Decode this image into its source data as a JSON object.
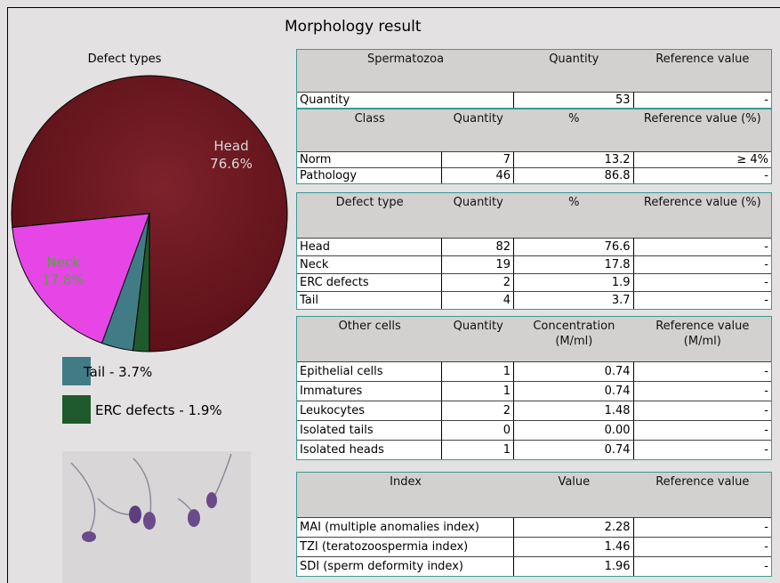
{
  "title": "Morphology result",
  "chart_data": {
    "type": "pie",
    "title": "Defect types",
    "categories": [
      "Head",
      "Neck",
      "Tail",
      "ERC defects"
    ],
    "values": [
      76.6,
      17.8,
      3.7,
      1.9
    ],
    "value_labels": [
      "76.6%",
      "17.8%",
      "3.7%",
      "1.9%"
    ],
    "colors": [
      "#6e1820",
      "#e646e6",
      "#417c86",
      "#1f5a2c"
    ],
    "legend": [
      {
        "series": 2,
        "label": "Tail - 3.7%"
      },
      {
        "series": 3,
        "label": "ERC defects - 1.9%"
      }
    ]
  },
  "tables": [
    {
      "span": true,
      "headers": [
        "Spermatozoa",
        "Quantity",
        "Reference value"
      ],
      "rows": [
        [
          "Quantity",
          "53",
          "-"
        ]
      ]
    },
    {
      "span": false,
      "headers": [
        "Class",
        "Quantity",
        "%",
        "Reference value (%)"
      ],
      "rows": [
        [
          "Norm",
          "7",
          "13.2",
          "≥ 4%"
        ],
        [
          "Pathology",
          "46",
          "86.8",
          "-"
        ]
      ]
    },
    {
      "span": false,
      "headers": [
        "Defect type",
        "Quantity",
        "%",
        "Reference value (%)"
      ],
      "rows": [
        [
          "Head",
          "82",
          "76.6",
          "-"
        ],
        [
          "Neck",
          "19",
          "17.8",
          "-"
        ],
        [
          "ERC defects",
          "2",
          "1.9",
          "-"
        ],
        [
          "Tail",
          "4",
          "3.7",
          "-"
        ]
      ]
    },
    {
      "span": false,
      "headers": [
        "Other cells",
        "Quantity",
        "Concentration (M/ml)",
        "Reference value (M/ml)"
      ],
      "rows": [
        [
          "Epithelial cells",
          "1",
          "0.74",
          "-"
        ],
        [
          "Immatures",
          "1",
          "0.74",
          "-"
        ],
        [
          "Leukocytes",
          "2",
          "1.48",
          "-"
        ],
        [
          "Isolated tails",
          "0",
          "0.00",
          "-"
        ],
        [
          "Isolated heads",
          "1",
          "0.74",
          "-"
        ]
      ]
    },
    {
      "span": true,
      "headers": [
        "Index",
        "Value",
        "Reference value"
      ],
      "rows": [
        [
          "MAI (multiple anomalies index)",
          "2.28",
          "-"
        ],
        [
          "TZI (teratozoospermia index)",
          "1.46",
          "-"
        ],
        [
          "SDI (sperm deformity index)",
          "1.96",
          "-"
        ]
      ]
    }
  ]
}
